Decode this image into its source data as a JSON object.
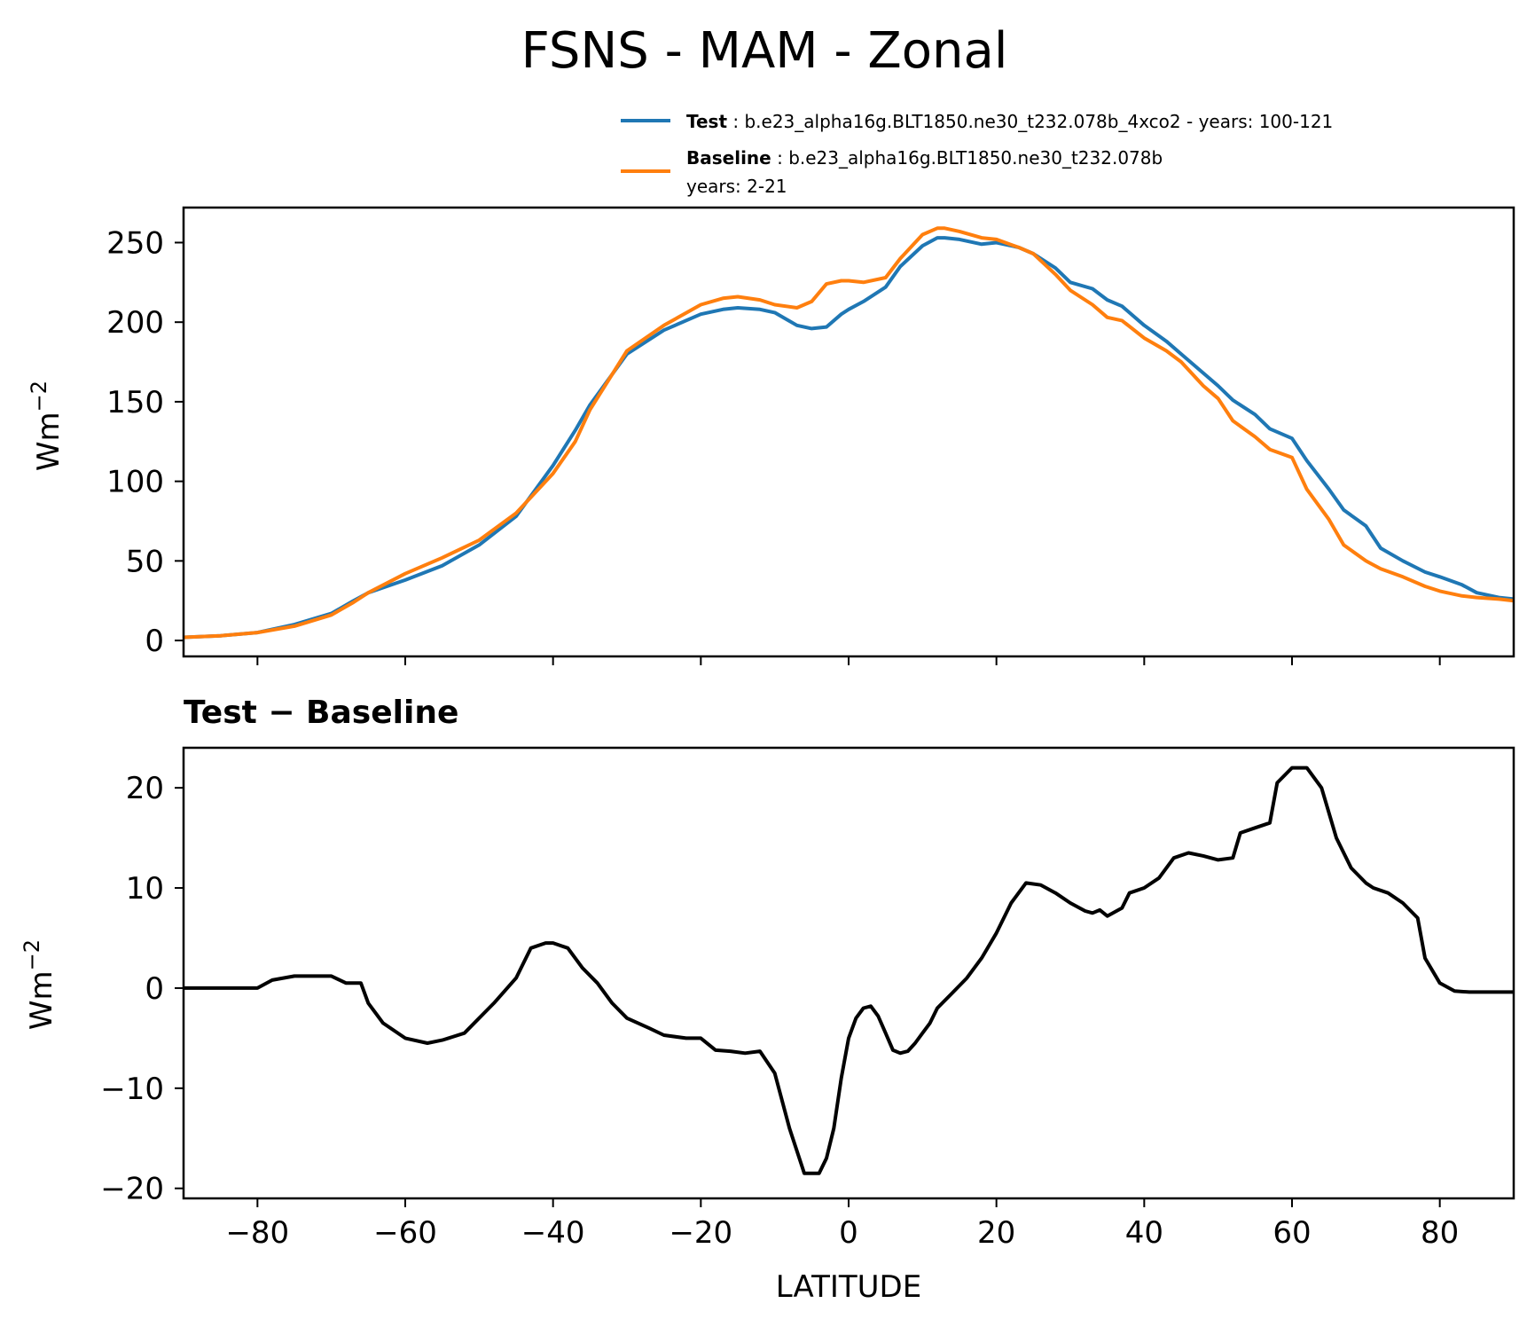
{
  "colors": {
    "test": "#1f77b4",
    "baseline": "#ff7f0e",
    "diff": "#000000"
  },
  "chart_data": [
    {
      "type": "line",
      "title": "FSNS - MAM - Zonal",
      "xlabel": "",
      "ylabel": "Wm",
      "ylabel_sup": "−2",
      "xlim": [
        -90,
        90
      ],
      "ylim": [
        -10,
        272
      ],
      "yticks": [
        0,
        50,
        100,
        150,
        200,
        250
      ],
      "xticks": [
        -80,
        -60,
        -40,
        -20,
        0,
        20,
        40,
        60,
        80
      ],
      "legend": {
        "placement": "above-top-right",
        "entries": [
          {
            "bold": "Test",
            "text": " : b.e23_alpha16g.BLT1850.ne30_t232.078b_4xco2 - years: 100-121",
            "line2": ""
          },
          {
            "bold": "Baseline",
            "text": " : b.e23_alpha16g.BLT1850.ne30_t232.078b",
            "line2": "years: 2-21"
          }
        ]
      },
      "x": [
        -90,
        -85,
        -80,
        -75,
        -70,
        -67,
        -65,
        -60,
        -55,
        -50,
        -45,
        -40,
        -37,
        -35,
        -30,
        -25,
        -20,
        -17,
        -15,
        -12,
        -10,
        -7,
        -5,
        -3,
        -1,
        0,
        2,
        5,
        7,
        10,
        12,
        13,
        15,
        18,
        20,
        23,
        25,
        28,
        30,
        33,
        35,
        37,
        40,
        43,
        45,
        48,
        50,
        52,
        55,
        57,
        60,
        62,
        65,
        67,
        70,
        72,
        75,
        78,
        80,
        83,
        85,
        88,
        90
      ],
      "series": [
        {
          "name": "Test",
          "values": [
            2,
            3,
            5,
            10,
            17,
            25,
            30,
            38,
            47,
            60,
            78,
            110,
            132,
            148,
            180,
            195,
            205,
            208,
            209,
            208,
            206,
            198,
            196,
            197,
            205,
            208,
            213,
            222,
            235,
            248,
            253,
            253,
            252,
            249,
            250,
            247,
            243,
            234,
            225,
            221,
            214,
            210,
            198,
            188,
            180,
            168,
            160,
            151,
            142,
            133,
            127,
            113,
            95,
            82,
            72,
            58,
            50,
            43,
            40,
            35,
            30,
            27,
            26
          ]
        },
        {
          "name": "Baseline",
          "values": [
            2,
            3,
            5,
            9,
            16,
            24,
            30,
            42,
            52,
            63,
            80,
            105,
            125,
            145,
            182,
            198,
            211,
            215,
            216,
            214,
            211,
            209,
            213,
            224,
            226,
            226,
            225,
            228,
            240,
            255,
            259,
            259,
            257,
            253,
            252,
            247,
            243,
            230,
            220,
            211,
            203,
            201,
            190,
            182,
            175,
            160,
            152,
            138,
            128,
            120,
            115,
            95,
            76,
            60,
            50,
            45,
            40,
            34,
            31,
            28,
            27,
            26,
            25
          ]
        }
      ]
    },
    {
      "type": "line",
      "title": "Test − Baseline",
      "xlabel": "LATITUDE",
      "ylabel": "Wm",
      "ylabel_sup": "−2",
      "xlim": [
        -90,
        90
      ],
      "ylim": [
        -21,
        24
      ],
      "yticks": [
        -20,
        -10,
        0,
        10,
        20
      ],
      "xticks": [
        -80,
        -60,
        -40,
        -20,
        0,
        20,
        40,
        60,
        80
      ],
      "x": [
        -90,
        -85,
        -80,
        -78,
        -75,
        -72,
        -70,
        -68,
        -66,
        -65,
        -63,
        -60,
        -57,
        -55,
        -52,
        -50,
        -48,
        -45,
        -43,
        -41,
        -40,
        -38,
        -36,
        -34,
        -32,
        -30,
        -27,
        -25,
        -22,
        -20,
        -18,
        -16,
        -14,
        -12,
        -10,
        -8,
        -6,
        -4,
        -3,
        -2,
        -1,
        0,
        1,
        2,
        3,
        4,
        5,
        6,
        7,
        8,
        9,
        10,
        11,
        12,
        14,
        16,
        18,
        20,
        22,
        24,
        26,
        28,
        30,
        32,
        33,
        34,
        35,
        37,
        38,
        40,
        42,
        44,
        46,
        48,
        50,
        52,
        53,
        55,
        57,
        58,
        60,
        62,
        64,
        66,
        68,
        70,
        71,
        73,
        75,
        77,
        78,
        80,
        82,
        84,
        86,
        88,
        90
      ],
      "series": [
        {
          "name": "Test − Baseline",
          "values": [
            0,
            0,
            0,
            0.8,
            1.2,
            1.2,
            1.2,
            0.5,
            0.5,
            -1.5,
            -3.5,
            -5,
            -5.5,
            -5.2,
            -4.5,
            -3,
            -1.5,
            1,
            4,
            4.5,
            4.5,
            4,
            2,
            0.5,
            -1.5,
            -3,
            -4,
            -4.7,
            -5,
            -5,
            -6.2,
            -6.3,
            -6.5,
            -6.3,
            -8.5,
            -14,
            -18.5,
            -18.5,
            -17,
            -14,
            -9,
            -5,
            -3,
            -2,
            -1.8,
            -2.8,
            -4.5,
            -6.2,
            -6.5,
            -6.3,
            -5.5,
            -4.5,
            -3.5,
            -2,
            -0.5,
            1,
            3,
            5.5,
            8.5,
            10.5,
            10.3,
            9.5,
            8.5,
            7.7,
            7.5,
            7.8,
            7.2,
            8,
            9.5,
            10,
            11,
            13,
            13.5,
            13.2,
            12.8,
            13,
            15.5,
            16,
            16.5,
            20.5,
            22,
            22,
            20,
            15,
            12,
            10.5,
            10,
            9.5,
            8.5,
            7,
            3,
            0.5,
            -0.3,
            -0.4,
            -0.4,
            -0.4,
            -0.4
          ]
        }
      ]
    }
  ]
}
